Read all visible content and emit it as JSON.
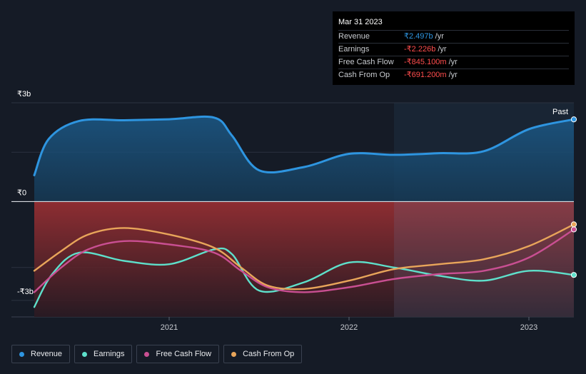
{
  "chart_data": {
    "type": "line",
    "x_domain": [
      2020.25,
      2023.25
    ],
    "ylim": [
      -3.5,
      3.0
    ],
    "y_ticks": [
      {
        "value": 3,
        "label": "₹3b"
      },
      {
        "value": 0,
        "label": "₹0"
      },
      {
        "value": -3,
        "label": "-₹3b"
      }
    ],
    "x_ticks": [
      {
        "value": 2021,
        "label": "2021"
      },
      {
        "value": 2022,
        "label": "2022"
      },
      {
        "value": 2023,
        "label": "2023"
      }
    ],
    "past_label": "Past",
    "past_start": 2022.25,
    "series": [
      {
        "name": "Revenue",
        "color": "#2e95e0",
        "points": [
          [
            2020.25,
            0.8
          ],
          [
            2020.33,
            1.9
          ],
          [
            2020.5,
            2.45
          ],
          [
            2020.75,
            2.47
          ],
          [
            2021.0,
            2.5
          ],
          [
            2021.25,
            2.55
          ],
          [
            2021.35,
            2.0
          ],
          [
            2021.5,
            0.95
          ],
          [
            2021.75,
            1.05
          ],
          [
            2022.0,
            1.45
          ],
          [
            2022.25,
            1.42
          ],
          [
            2022.5,
            1.47
          ],
          [
            2022.75,
            1.53
          ],
          [
            2023.0,
            2.2
          ],
          [
            2023.25,
            2.497
          ]
        ]
      },
      {
        "name": "Earnings",
        "color": "#5ee0cb",
        "points": [
          [
            2020.25,
            -3.2
          ],
          [
            2020.35,
            -2.2
          ],
          [
            2020.5,
            -1.55
          ],
          [
            2020.75,
            -1.8
          ],
          [
            2021.0,
            -1.9
          ],
          [
            2021.25,
            -1.45
          ],
          [
            2021.35,
            -1.6
          ],
          [
            2021.5,
            -2.7
          ],
          [
            2021.75,
            -2.45
          ],
          [
            2022.0,
            -1.85
          ],
          [
            2022.25,
            -2.0
          ],
          [
            2022.5,
            -2.25
          ],
          [
            2022.75,
            -2.4
          ],
          [
            2023.0,
            -2.1
          ],
          [
            2023.25,
            -2.226
          ]
        ]
      },
      {
        "name": "Free Cash Flow",
        "color": "#c94f92",
        "points": [
          [
            2020.25,
            -2.75
          ],
          [
            2020.4,
            -2.0
          ],
          [
            2020.55,
            -1.45
          ],
          [
            2020.75,
            -1.2
          ],
          [
            2021.0,
            -1.3
          ],
          [
            2021.25,
            -1.55
          ],
          [
            2021.4,
            -2.1
          ],
          [
            2021.55,
            -2.6
          ],
          [
            2021.75,
            -2.75
          ],
          [
            2022.0,
            -2.6
          ],
          [
            2022.25,
            -2.35
          ],
          [
            2022.5,
            -2.2
          ],
          [
            2022.75,
            -2.1
          ],
          [
            2023.0,
            -1.7
          ],
          [
            2023.25,
            -0.845
          ]
        ]
      },
      {
        "name": "Cash From Op",
        "color": "#e8a55a",
        "points": [
          [
            2020.25,
            -2.1
          ],
          [
            2020.4,
            -1.5
          ],
          [
            2020.55,
            -1.0
          ],
          [
            2020.75,
            -0.8
          ],
          [
            2021.0,
            -1.0
          ],
          [
            2021.25,
            -1.4
          ],
          [
            2021.4,
            -2.0
          ],
          [
            2021.55,
            -2.55
          ],
          [
            2021.75,
            -2.65
          ],
          [
            2022.0,
            -2.4
          ],
          [
            2022.25,
            -2.05
          ],
          [
            2022.5,
            -1.9
          ],
          [
            2022.75,
            -1.75
          ],
          [
            2023.0,
            -1.35
          ],
          [
            2023.25,
            -0.691
          ]
        ]
      }
    ]
  },
  "tooltip": {
    "date": "Mar 31 2023",
    "rows": [
      {
        "label": "Revenue",
        "value": "₹2.497b",
        "unit": "/yr",
        "color": "#2e95e0"
      },
      {
        "label": "Earnings",
        "value": "-₹2.226b",
        "unit": "/yr",
        "color": "#ff4d4d"
      },
      {
        "label": "Free Cash Flow",
        "value": "-₹845.100m",
        "unit": "/yr",
        "color": "#ff4d4d"
      },
      {
        "label": "Cash From Op",
        "value": "-₹691.200m",
        "unit": "/yr",
        "color": "#ff4d4d"
      }
    ]
  },
  "legend": [
    {
      "label": "Revenue",
      "color": "#2e95e0"
    },
    {
      "label": "Earnings",
      "color": "#5ee0cb"
    },
    {
      "label": "Free Cash Flow",
      "color": "#c94f92"
    },
    {
      "label": "Cash From Op",
      "color": "#e8a55a"
    }
  ]
}
